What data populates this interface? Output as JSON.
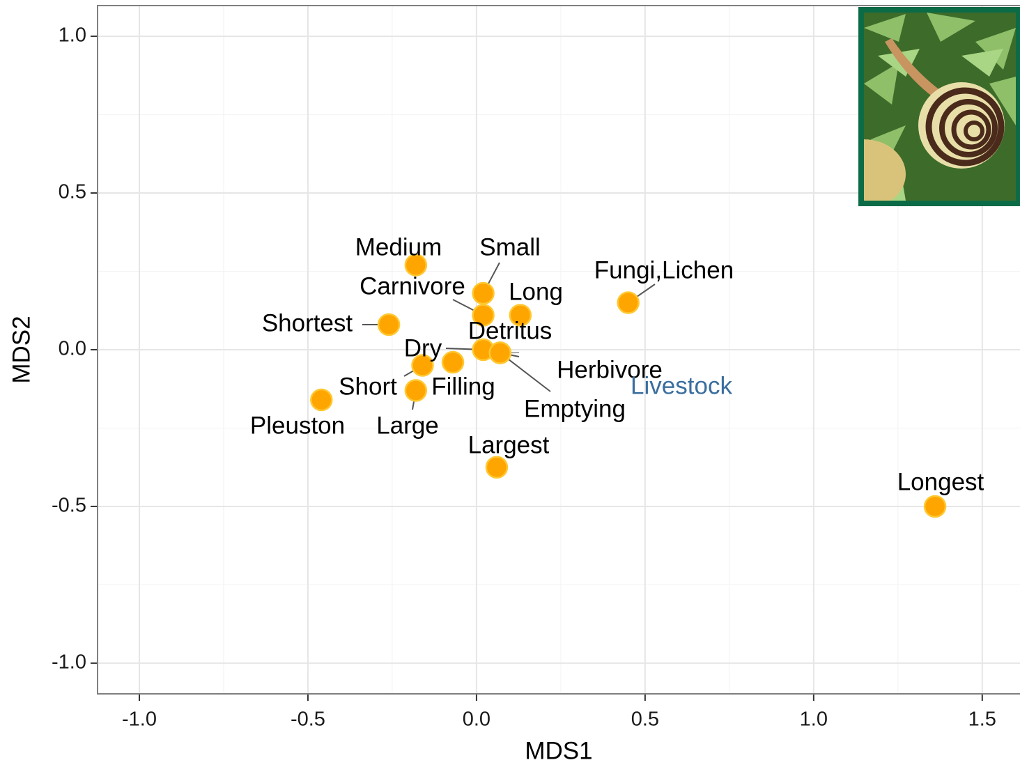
{
  "chart_data": {
    "type": "scatter",
    "x_label": "MDS1",
    "y_label": "MDS2",
    "xlim": [
      -1.124,
      1.612
    ],
    "ylim": [
      -1.098,
      1.098
    ],
    "xticks": [
      {
        "value": -1.0,
        "label": "-1.0"
      },
      {
        "value": -0.5,
        "label": "-0.5"
      },
      {
        "value": 0.0,
        "label": "0.0"
      },
      {
        "value": 0.5,
        "label": "0.5"
      },
      {
        "value": 1.0,
        "label": "1.0"
      },
      {
        "value": 1.5,
        "label": "1.5"
      }
    ],
    "yticks": [
      {
        "value": -1.0,
        "label": "-1.0"
      },
      {
        "value": -0.5,
        "label": "-0.5"
      },
      {
        "value": 0.0,
        "label": "0.0"
      },
      {
        "value": 0.5,
        "label": "0.5"
      },
      {
        "value": 1.0,
        "label": "1.0"
      }
    ],
    "grid": true,
    "series": [
      {
        "color": "#ffa500",
        "labels": [
          "Medium",
          "Small",
          "Carnivore",
          "Long",
          "Fungi,Lichen",
          "Shortest",
          "Detritus",
          "Dry",
          "Herbivore",
          "Livestock",
          "Short",
          "Filling",
          "Emptying",
          "Pleuston",
          "Large",
          "Largest",
          "Longest"
        ],
        "label_colors": [
          "#000000",
          "#000000",
          "#000000",
          "#000000",
          "#000000",
          "#000000",
          "#000000",
          "#000000",
          "#000000",
          "#3a6e9e",
          "#000000",
          "#000000",
          "#000000",
          "#000000",
          "#000000",
          "#000000",
          "#000000"
        ],
        "x": [
          -0.18,
          0.02,
          0.02,
          0.13,
          0.45,
          -0.26,
          0.07,
          0.02,
          0.07,
          0.07,
          -0.16,
          -0.07,
          0.07,
          -0.46,
          -0.18,
          0.06,
          1.36
        ],
        "values": [
          0.27,
          0.18,
          0.11,
          0.11,
          0.15,
          0.08,
          -0.01,
          0.0,
          -0.01,
          -0.01,
          -0.05,
          -0.04,
          -0.01,
          -0.16,
          -0.13,
          -0.375,
          -0.5
        ]
      }
    ]
  }
}
